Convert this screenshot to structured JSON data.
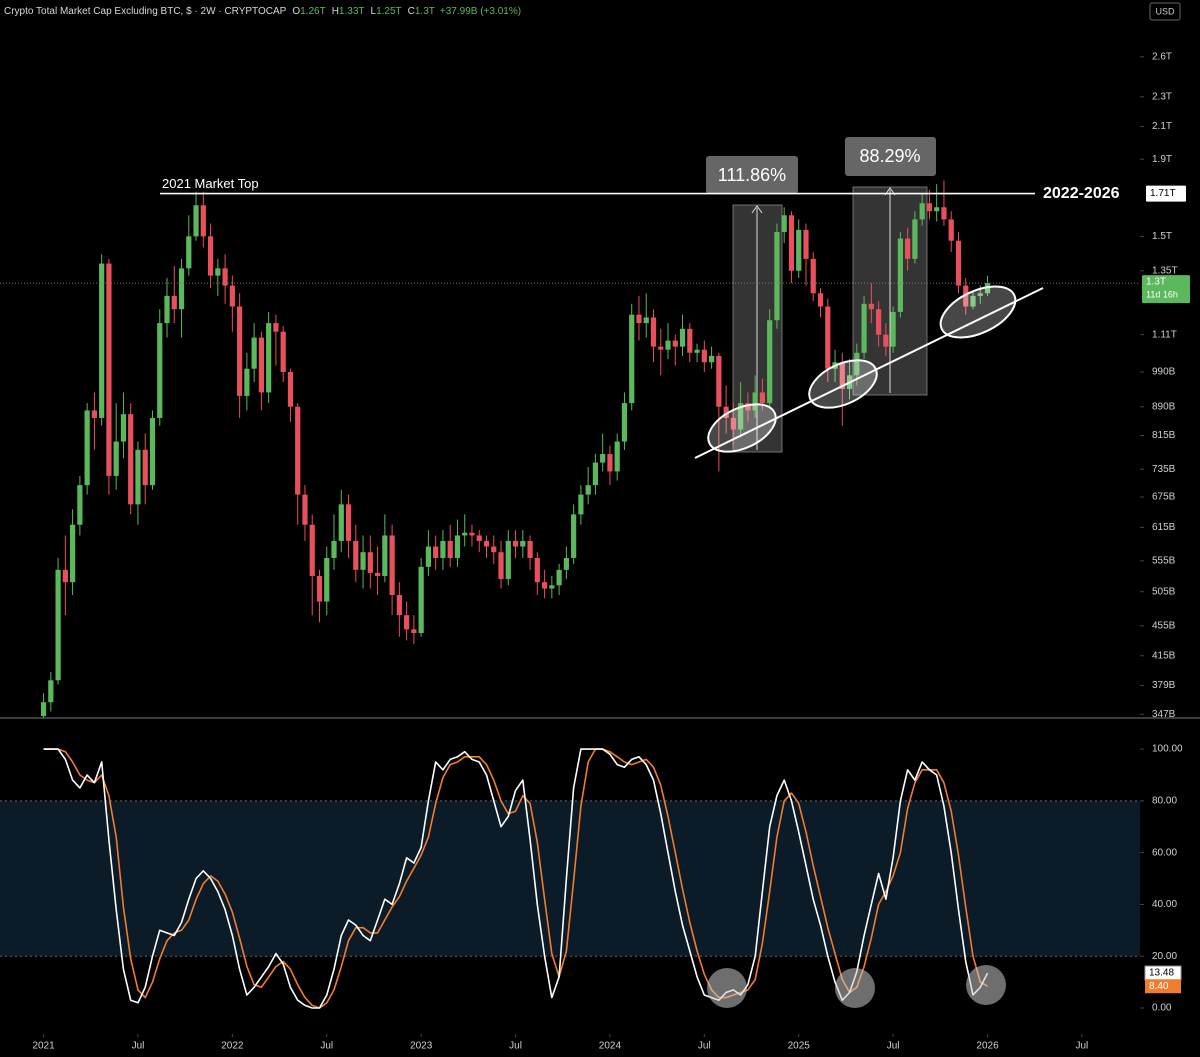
{
  "chart_data": [
    {
      "type": "candlestick",
      "title": "Crypto Total Market Cap Excluding BTC, $ · 2W · CRYPTOCAP",
      "legend_values": [
        {
          "label": "O",
          "value": "1.26T"
        },
        {
          "label": "H",
          "value": "1.33T"
        },
        {
          "label": "L",
          "value": "1.25T"
        },
        {
          "label": "C",
          "value": "1.3T"
        }
      ],
      "change": "+37.99B (+3.01%)",
      "currency": "USD",
      "log_scale": true,
      "up_color": "#5cb85c",
      "down_color": "#e8505b",
      "xlim": [
        -6,
        151
      ],
      "ylim": [
        343,
        2866
      ],
      "yticks": [
        {
          "value": 2600,
          "label": "2.6T"
        },
        {
          "value": 2300,
          "label": "2.3T"
        },
        {
          "value": 2100,
          "label": "2.1T"
        },
        {
          "value": 1900,
          "label": "1.9T"
        },
        {
          "value": 1500,
          "label": "1.5T"
        },
        {
          "value": 1350,
          "label": "1.35T"
        },
        {
          "value": 1110,
          "label": "1.11T"
        },
        {
          "value": 990,
          "label": "990B"
        },
        {
          "value": 890,
          "label": "890B"
        },
        {
          "value": 815,
          "label": "815B"
        },
        {
          "value": 735,
          "label": "735B"
        },
        {
          "value": 675,
          "label": "675B"
        },
        {
          "value": 615,
          "label": "615B"
        },
        {
          "value": 555,
          "label": "555B"
        },
        {
          "value": 505,
          "label": "505B"
        },
        {
          "value": 455,
          "label": "455B"
        },
        {
          "value": 415,
          "label": "415B"
        },
        {
          "value": 379,
          "label": "379B"
        },
        {
          "value": 347,
          "label": "347B"
        }
      ],
      "hline": {
        "value": 1710,
        "label": "1.71T",
        "text": "2021 Market Top",
        "right_text": "2022-2026"
      },
      "measures": [
        {
          "label": "111.86%"
        },
        {
          "label": "88.29%"
        }
      ],
      "current_label": "1.3T",
      "countdown": "11d 16h",
      "ohlc": [
        [
          345,
          370,
          343,
          360
        ],
        [
          360,
          395,
          350,
          385
        ],
        [
          385,
          560,
          380,
          540
        ],
        [
          540,
          600,
          470,
          520
        ],
        [
          520,
          650,
          500,
          620
        ],
        [
          620,
          720,
          600,
          700
        ],
        [
          700,
          900,
          680,
          880
        ],
        [
          880,
          930,
          780,
          860
        ],
        [
          860,
          1420,
          840,
          1380
        ],
        [
          1380,
          1400,
          680,
          720
        ],
        [
          720,
          900,
          690,
          800
        ],
        [
          800,
          930,
          760,
          870
        ],
        [
          870,
          900,
          640,
          660
        ],
        [
          660,
          800,
          620,
          780
        ],
        [
          780,
          820,
          660,
          700
        ],
        [
          700,
          880,
          690,
          860
        ],
        [
          860,
          1200,
          840,
          1150
        ],
        [
          1150,
          1320,
          1100,
          1250
        ],
        [
          1250,
          1370,
          1150,
          1200
        ],
        [
          1200,
          1400,
          1100,
          1360
        ],
        [
          1360,
          1600,
          1330,
          1500
        ],
        [
          1500,
          1720,
          1480,
          1650
        ],
        [
          1650,
          1720,
          1450,
          1500
        ],
        [
          1500,
          1560,
          1280,
          1330
        ],
        [
          1330,
          1400,
          1250,
          1360
        ],
        [
          1360,
          1420,
          1220,
          1290
        ],
        [
          1290,
          1330,
          1120,
          1210
        ],
        [
          1210,
          1260,
          860,
          920
        ],
        [
          920,
          1050,
          880,
          1000
        ],
        [
          1000,
          1150,
          960,
          1100
        ],
        [
          1100,
          1120,
          880,
          930
        ],
        [
          930,
          1190,
          900,
          1150
        ],
        [
          1150,
          1180,
          1010,
          1120
        ],
        [
          1120,
          1140,
          960,
          990
        ],
        [
          990,
          1000,
          850,
          890
        ],
        [
          890,
          900,
          620,
          680
        ],
        [
          680,
          700,
          590,
          620
        ],
        [
          620,
          640,
          470,
          530
        ],
        [
          530,
          540,
          460,
          490
        ],
        [
          490,
          580,
          470,
          560
        ],
        [
          560,
          640,
          540,
          590
        ],
        [
          590,
          690,
          570,
          660
        ],
        [
          660,
          680,
          560,
          590
        ],
        [
          590,
          620,
          520,
          540
        ],
        [
          540,
          600,
          510,
          570
        ],
        [
          570,
          600,
          510,
          535
        ],
        [
          535,
          580,
          500,
          530
        ],
        [
          530,
          640,
          520,
          600
        ],
        [
          600,
          620,
          470,
          500
        ],
        [
          500,
          520,
          440,
          470
        ],
        [
          470,
          490,
          435,
          450
        ],
        [
          450,
          470,
          430,
          445
        ],
        [
          445,
          560,
          440,
          545
        ],
        [
          545,
          610,
          530,
          580
        ],
        [
          580,
          600,
          540,
          560
        ],
        [
          560,
          610,
          540,
          590
        ],
        [
          590,
          620,
          545,
          560
        ],
        [
          560,
          630,
          545,
          600
        ],
        [
          600,
          640,
          580,
          605
        ],
        [
          605,
          620,
          580,
          600
        ],
        [
          600,
          610,
          570,
          590
        ],
        [
          590,
          600,
          560,
          580
        ],
        [
          580,
          600,
          550,
          570
        ],
        [
          570,
          590,
          510,
          525
        ],
        [
          525,
          610,
          515,
          590
        ],
        [
          590,
          610,
          560,
          580
        ],
        [
          580,
          610,
          560,
          590
        ],
        [
          590,
          600,
          540,
          560
        ],
        [
          560,
          570,
          500,
          520
        ],
        [
          520,
          540,
          495,
          510
        ],
        [
          510,
          530,
          495,
          515
        ],
        [
          515,
          550,
          500,
          540
        ],
        [
          540,
          580,
          525,
          560
        ],
        [
          560,
          660,
          550,
          640
        ],
        [
          640,
          700,
          620,
          680
        ],
        [
          680,
          740,
          660,
          700
        ],
        [
          700,
          770,
          680,
          750
        ],
        [
          750,
          820,
          730,
          770
        ],
        [
          770,
          790,
          700,
          730
        ],
        [
          730,
          820,
          710,
          800
        ],
        [
          800,
          930,
          780,
          900
        ],
        [
          900,
          1220,
          880,
          1180
        ],
        [
          1180,
          1250,
          1090,
          1150
        ],
        [
          1150,
          1260,
          1100,
          1170
        ],
        [
          1170,
          1200,
          1020,
          1070
        ],
        [
          1070,
          1130,
          980,
          1060
        ],
        [
          1060,
          1150,
          1030,
          1090
        ],
        [
          1090,
          1110,
          1010,
          1070
        ],
        [
          1070,
          1180,
          1040,
          1130
        ],
        [
          1130,
          1150,
          1020,
          1050
        ],
        [
          1050,
          1080,
          1020,
          1060
        ],
        [
          1060,
          1090,
          990,
          1020
        ],
        [
          1020,
          1070,
          1000,
          1040
        ],
        [
          1040,
          1050,
          730,
          890
        ],
        [
          890,
          950,
          820,
          860
        ],
        [
          860,
          900,
          790,
          830
        ],
        [
          830,
          960,
          810,
          900
        ],
        [
          900,
          930,
          850,
          880
        ],
        [
          880,
          980,
          860,
          930
        ],
        [
          930,
          970,
          880,
          900
        ],
        [
          900,
          1200,
          890,
          1160
        ],
        [
          1160,
          1560,
          1130,
          1520
        ],
        [
          1520,
          1640,
          1470,
          1600
        ],
        [
          1600,
          1620,
          1300,
          1350
        ],
        [
          1350,
          1580,
          1320,
          1530
        ],
        [
          1530,
          1560,
          1290,
          1400
        ],
        [
          1400,
          1430,
          1230,
          1260
        ],
        [
          1260,
          1280,
          1170,
          1210
        ],
        [
          1210,
          1240,
          960,
          1000
        ],
        [
          1000,
          1060,
          960,
          1020
        ],
        [
          1020,
          1050,
          840,
          940
        ],
        [
          940,
          1030,
          910,
          980
        ],
        [
          980,
          1080,
          950,
          1050
        ],
        [
          1050,
          1250,
          1030,
          1220
        ],
        [
          1220,
          1300,
          1150,
          1200
        ],
        [
          1200,
          1230,
          1070,
          1110
        ],
        [
          1110,
          1150,
          1040,
          1070
        ],
        [
          1070,
          1210,
          1050,
          1190
        ],
        [
          1190,
          1520,
          1170,
          1490
        ],
        [
          1490,
          1540,
          1350,
          1400
        ],
        [
          1400,
          1620,
          1380,
          1580
        ],
        [
          1580,
          1710,
          1550,
          1660
        ],
        [
          1660,
          1730,
          1580,
          1620
        ],
        [
          1620,
          1760,
          1570,
          1640
        ],
        [
          1640,
          1780,
          1550,
          1580
        ],
        [
          1580,
          1620,
          1430,
          1480
        ],
        [
          1480,
          1520,
          1260,
          1290
        ],
        [
          1290,
          1320,
          1180,
          1210
        ],
        [
          1210,
          1270,
          1200,
          1250
        ],
        [
          1250,
          1290,
          1220,
          1260
        ],
        [
          1260,
          1330,
          1250,
          1300
        ]
      ]
    },
    {
      "type": "line",
      "xlim": [
        -6,
        151
      ],
      "ylim": [
        -8.5,
        112
      ],
      "yticks": [
        {
          "value": 100,
          "label": "100.00"
        },
        {
          "value": 80,
          "label": "80.00"
        },
        {
          "value": 60,
          "label": "60.00"
        },
        {
          "value": 40,
          "label": "40.00"
        },
        {
          "value": 20,
          "label": "20.00"
        },
        {
          "value": 0,
          "label": "0.00"
        }
      ],
      "band": [
        20,
        80
      ],
      "xticks": [
        {
          "value": 0,
          "label": "2021"
        },
        {
          "value": 13,
          "label": "Jul"
        },
        {
          "value": 26,
          "label": "2022"
        },
        {
          "value": 39,
          "label": "Jul"
        },
        {
          "value": 52,
          "label": "2023"
        },
        {
          "value": 65,
          "label": "Jul"
        },
        {
          "value": 78,
          "label": "2024"
        },
        {
          "value": 91,
          "label": "Jul"
        },
        {
          "value": 104,
          "label": "2025"
        },
        {
          "value": 117,
          "label": "Jul"
        },
        {
          "value": 130,
          "label": "2026"
        },
        {
          "value": 143,
          "label": "Jul"
        }
      ],
      "series": [
        {
          "color": "#ffffff",
          "values": [
            100,
            100,
            100,
            96,
            88,
            85,
            90,
            87,
            95,
            65,
            38,
            15,
            3,
            2,
            8,
            20,
            30,
            29,
            28,
            33,
            42,
            50,
            53,
            50,
            45,
            38,
            28,
            15,
            5,
            8,
            12,
            16,
            21,
            17,
            8,
            3,
            1,
            0,
            0,
            5,
            15,
            28,
            34,
            32,
            28,
            26,
            34,
            42,
            40,
            48,
            58,
            56,
            62,
            80,
            95,
            92,
            96,
            97,
            99,
            96,
            95,
            90,
            80,
            70,
            74,
            84,
            88,
            65,
            40,
            20,
            4,
            12,
            50,
            85,
            100,
            100,
            100,
            100,
            98,
            94,
            93,
            96,
            97,
            94,
            88,
            75,
            60,
            45,
            32,
            22,
            12,
            5,
            4,
            3,
            6,
            7,
            5,
            9,
            20,
            45,
            70,
            82,
            88,
            80,
            68,
            55,
            42,
            32,
            20,
            10,
            3,
            6,
            14,
            28,
            40,
            52,
            42,
            58,
            80,
            92,
            88,
            95,
            92,
            90,
            78,
            60,
            38,
            18,
            5,
            8,
            13.48
          ]
        },
        {
          "color": "#f07d2e",
          "value_label": "8.40",
          "values": [
            100,
            100,
            100,
            99,
            95,
            90,
            88,
            87,
            90,
            82,
            66,
            39,
            19,
            7,
            4,
            10,
            19,
            26,
            29,
            30,
            34,
            42,
            48,
            51,
            49,
            44,
            37,
            27,
            16,
            9,
            8,
            12,
            16,
            18,
            15,
            9,
            4,
            1,
            0,
            2,
            7,
            16,
            26,
            31,
            31,
            29,
            29,
            34,
            39,
            43,
            49,
            54,
            59,
            66,
            79,
            89,
            94,
            95,
            97,
            97,
            97,
            94,
            88,
            80,
            75,
            76,
            82,
            79,
            64,
            42,
            21,
            12,
            22,
            49,
            78,
            95,
            100,
            100,
            99,
            97,
            95,
            94,
            95,
            96,
            93,
            86,
            74,
            60,
            46,
            33,
            22,
            13,
            7,
            4,
            4,
            5,
            6,
            7,
            11,
            25,
            45,
            66,
            80,
            83,
            79,
            68,
            55,
            43,
            31,
            21,
            11,
            6,
            8,
            16,
            27,
            40,
            45,
            51,
            60,
            77,
            87,
            92,
            92,
            92,
            87,
            76,
            59,
            39,
            20,
            10,
            8.4
          ]
        }
      ]
    }
  ]
}
